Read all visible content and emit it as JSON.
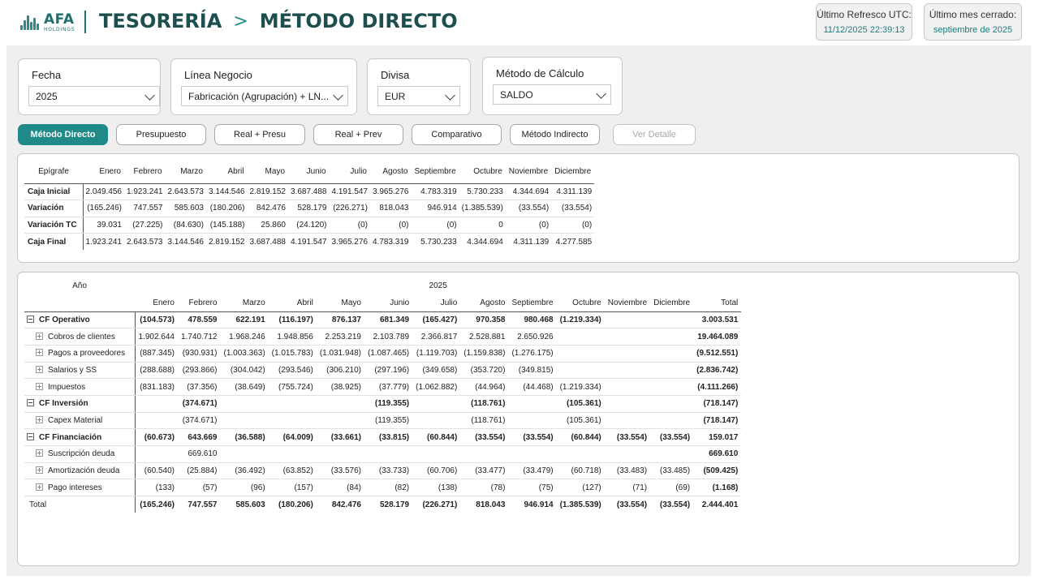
{
  "header": {
    "logo_name": "AFA",
    "logo_sub": "HOLDINGS",
    "section": "TESORERÍA",
    "page": "MÉTODO DIRECTO",
    "refresh_label": "Último Refresco UTC:",
    "refresh_value": "11/12/2025 22:39:13",
    "closed_label": "Último mes cerrado:",
    "closed_value": "septiembre de 2025"
  },
  "filters": {
    "fecha": {
      "label": "Fecha",
      "value": "2025"
    },
    "linea": {
      "label": "Línea Negocio",
      "value": "Fabricación (Agrupación) + LN..."
    },
    "divisa": {
      "label": "Divisa",
      "value": "EUR"
    },
    "metodo": {
      "label": "Método de Cálculo",
      "value": "SALDO"
    }
  },
  "buttons": {
    "metodo_directo": "Método Directo",
    "presupuesto": "Presupuesto",
    "real_presu": "Real + Presu",
    "real_prev": "Real + Prev",
    "comparativo": "Comparativo",
    "metodo_indirecto": "Método Indirecto",
    "ver_detalle": "Ver Detalle"
  },
  "summary": {
    "header_label": "Epígrafe",
    "months": [
      "Enero",
      "Febrero",
      "Marzo",
      "Abril",
      "Mayo",
      "Junio",
      "Julio",
      "Agosto",
      "Septiembre",
      "Octubre",
      "Noviembre",
      "Diciembre"
    ],
    "rows": [
      {
        "label": "Caja Inicial",
        "values": [
          "2.049.456",
          "1.923.241",
          "2.643.573",
          "3.144.546",
          "2.819.152",
          "3.687.488",
          "4.191.547",
          "3.965.276",
          "4.783.319",
          "5.730.233",
          "4.344.694",
          "4.311.139"
        ]
      },
      {
        "label": "Variación",
        "values": [
          "(165.246)",
          "747.557",
          "585.603",
          "(180.206)",
          "842.476",
          "528.179",
          "(226.271)",
          "818.043",
          "946.914",
          "(1.385.539)",
          "(33.554)",
          "(33.554)"
        ]
      },
      {
        "label": "Variación TC",
        "values": [
          "39.031",
          "(27.225)",
          "(84.630)",
          "(145.188)",
          "25.860",
          "(24.120)",
          "(0)",
          "(0)",
          "(0)",
          "0",
          "(0)",
          "(0)"
        ]
      },
      {
        "label": "Caja Final",
        "values": [
          "1.923.241",
          "2.643.573",
          "3.144.546",
          "2.819.152",
          "3.687.488",
          "4.191.547",
          "3.965.276",
          "4.783.319",
          "5.730.233",
          "4.344.694",
          "4.311.139",
          "4.277.585"
        ]
      }
    ]
  },
  "detail": {
    "year_label": "Año",
    "year": "2025",
    "months": [
      "Enero",
      "Febrero",
      "Marzo",
      "Abril",
      "Mayo",
      "Junio",
      "Julio",
      "Agosto",
      "Septiembre",
      "Octubre",
      "Noviembre",
      "Diciembre",
      "Total"
    ],
    "rows": [
      {
        "label": "CF Operativo",
        "group": true,
        "values": [
          "(104.573)",
          "478.559",
          "622.191",
          "(116.197)",
          "876.137",
          "681.349",
          "(165.427)",
          "970.358",
          "980.468",
          "(1.219.334)",
          "",
          "",
          "3.003.531"
        ]
      },
      {
        "label": "Cobros de clientes",
        "group": false,
        "values": [
          "1.902.644",
          "1.740.712",
          "1.968.246",
          "1.948.856",
          "2.253.219",
          "2.103.789",
          "2.366.817",
          "2.528.881",
          "2.650.926",
          "",
          "",
          "",
          "19.464.089"
        ]
      },
      {
        "label": "Pagos a proveedores",
        "group": false,
        "values": [
          "(887.345)",
          "(930.931)",
          "(1.003.363)",
          "(1.015.783)",
          "(1.031.948)",
          "(1.087.465)",
          "(1.119.703)",
          "(1.159.838)",
          "(1.276.175)",
          "",
          "",
          "",
          "(9.512.551)"
        ]
      },
      {
        "label": "Salarios y SS",
        "group": false,
        "values": [
          "(288.688)",
          "(293.866)",
          "(304.042)",
          "(293.546)",
          "(306.210)",
          "(297.196)",
          "(349.658)",
          "(353.720)",
          "(349.815)",
          "",
          "",
          "",
          "(2.836.742)"
        ]
      },
      {
        "label": "Impuestos",
        "group": false,
        "values": [
          "(831.183)",
          "(37.356)",
          "(38.649)",
          "(755.724)",
          "(38.925)",
          "(37.779)",
          "(1.062.882)",
          "(44.964)",
          "(44.468)",
          "(1.219.334)",
          "",
          "",
          "(4.111.266)"
        ]
      },
      {
        "label": "CF Inversión",
        "group": true,
        "values": [
          "",
          "(374.671)",
          "",
          "",
          "",
          "(119.355)",
          "",
          "(118.761)",
          "",
          "(105.361)",
          "",
          "",
          "(718.147)"
        ]
      },
      {
        "label": "Capex Material",
        "group": false,
        "values": [
          "",
          "(374.671)",
          "",
          "",
          "",
          "(119.355)",
          "",
          "(118.761)",
          "",
          "(105.361)",
          "",
          "",
          "(718.147)"
        ]
      },
      {
        "label": "CF Financiación",
        "group": true,
        "values": [
          "(60.673)",
          "643.669",
          "(36.588)",
          "(64.009)",
          "(33.661)",
          "(33.815)",
          "(60.844)",
          "(33.554)",
          "(33.554)",
          "(60.844)",
          "(33.554)",
          "(33.554)",
          "159.017"
        ]
      },
      {
        "label": "Suscripción deuda",
        "group": false,
        "values": [
          "",
          "669.610",
          "",
          "",
          "",
          "",
          "",
          "",
          "",
          "",
          "",
          "",
          "669.610"
        ]
      },
      {
        "label": "Amortización deuda",
        "group": false,
        "values": [
          "(60.540)",
          "(25.884)",
          "(36.492)",
          "(63.852)",
          "(33.576)",
          "(33.733)",
          "(60.706)",
          "(33.477)",
          "(33.479)",
          "(60.718)",
          "(33.483)",
          "(33.485)",
          "(509.425)"
        ]
      },
      {
        "label": "Pago intereses",
        "group": false,
        "values": [
          "(133)",
          "(57)",
          "(96)",
          "(157)",
          "(84)",
          "(82)",
          "(138)",
          "(78)",
          "(75)",
          "(127)",
          "(71)",
          "(69)",
          "(1.168)"
        ]
      }
    ],
    "total": {
      "label": "Total",
      "values": [
        "(165.246)",
        "747.557",
        "585.603",
        "(180.206)",
        "842.476",
        "528.179",
        "(226.271)",
        "818.043",
        "946.914",
        "(1.385.539)",
        "(33.554)",
        "(33.554)",
        "2.444.401"
      ]
    }
  },
  "colors": {
    "accent": "#1f8a87",
    "title": "#1d4f4f"
  }
}
